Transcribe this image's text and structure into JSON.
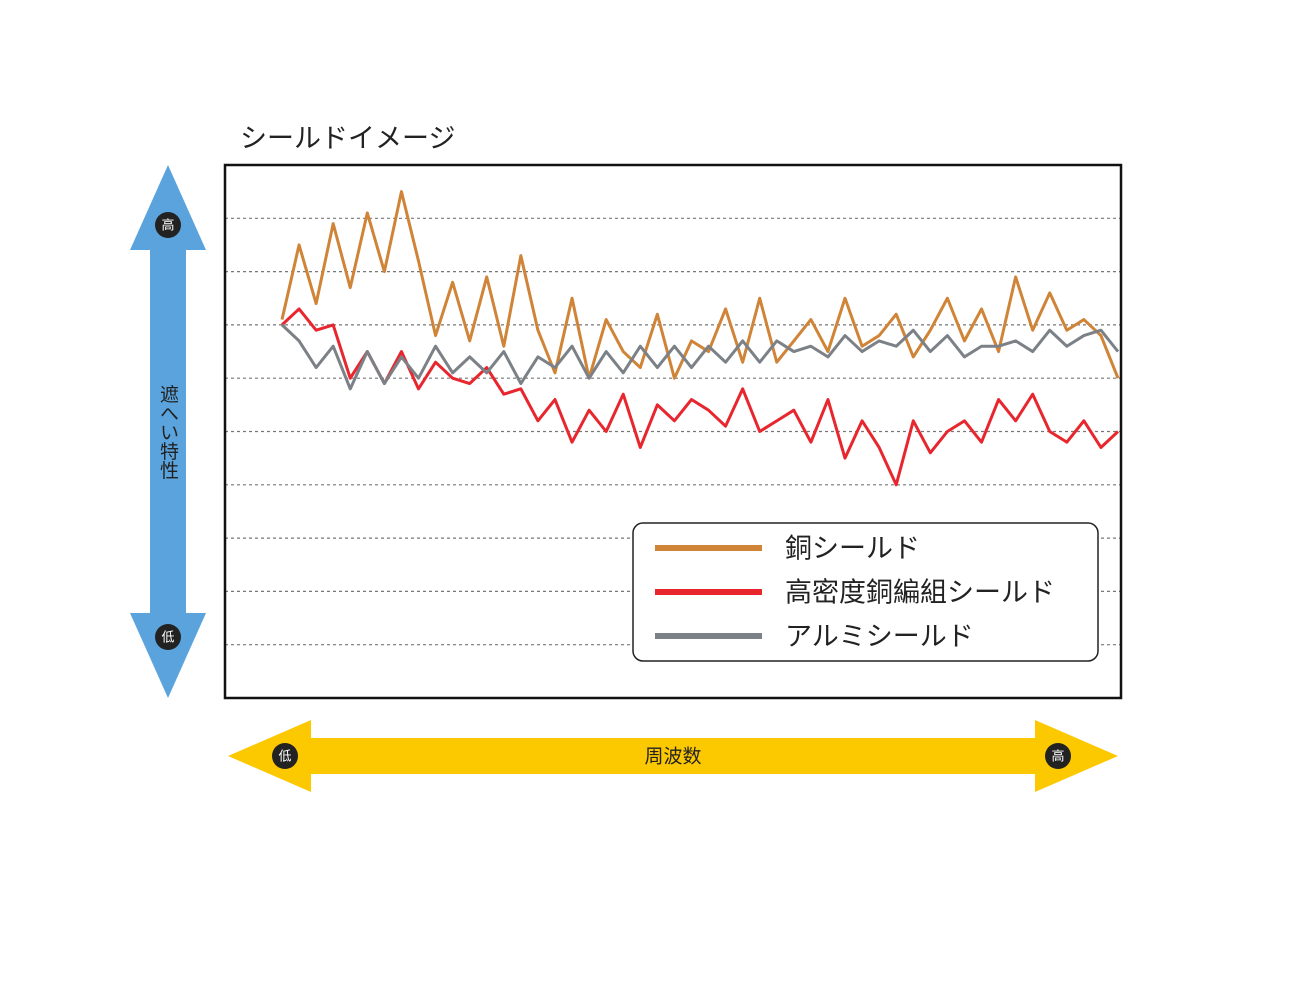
{
  "chart_data": {
    "type": "line",
    "title": "シールドイメージ",
    "y_label": "遮へい特性",
    "y_low_label": "低",
    "y_high_label": "高",
    "x_label": "周波数",
    "x_low_label": "低",
    "x_high_label": "高",
    "ylim": [
      0,
      10
    ],
    "yticks": [
      1,
      2,
      3,
      4,
      5,
      6,
      7,
      8,
      9
    ],
    "grid": true,
    "legend": "lower right",
    "series": [
      {
        "name": "銅シールド",
        "color": "#cf8437",
        "values": [
          7.1,
          8.5,
          7.4,
          8.9,
          7.7,
          9.1,
          8.0,
          9.5,
          8.2,
          6.8,
          7.8,
          6.7,
          7.9,
          6.6,
          8.3,
          6.9,
          6.1,
          7.5,
          6.0,
          7.1,
          6.5,
          6.2,
          7.2,
          6.0,
          6.7,
          6.5,
          7.3,
          6.3,
          7.5,
          6.3,
          6.7,
          7.1,
          6.5,
          7.5,
          6.6,
          6.8,
          7.2,
          6.4,
          6.9,
          7.5,
          6.7,
          7.3,
          6.5,
          7.9,
          6.9,
          7.6,
          6.9,
          7.1,
          6.8,
          6.0
        ]
      },
      {
        "name": "高密度銅編組シールド",
        "color": "#e8262e",
        "values": [
          7.0,
          7.3,
          6.9,
          7.0,
          6.0,
          6.5,
          5.9,
          6.5,
          5.8,
          6.3,
          6.0,
          5.9,
          6.2,
          5.7,
          5.8,
          5.2,
          5.6,
          4.8,
          5.4,
          5.0,
          5.7,
          4.7,
          5.5,
          5.2,
          5.6,
          5.4,
          5.1,
          5.8,
          5.0,
          5.2,
          5.4,
          4.8,
          5.6,
          4.5,
          5.2,
          4.7,
          4.0,
          5.2,
          4.6,
          5.0,
          5.2,
          4.8,
          5.6,
          5.2,
          5.7,
          5.0,
          4.8,
          5.2,
          4.7,
          5.0
        ]
      },
      {
        "name": "アルミシールド",
        "color": "#7b8187",
        "values": [
          7.0,
          6.7,
          6.2,
          6.6,
          5.8,
          6.5,
          5.9,
          6.4,
          6.0,
          6.6,
          6.1,
          6.4,
          6.1,
          6.5,
          5.9,
          6.4,
          6.2,
          6.6,
          6.0,
          6.5,
          6.1,
          6.6,
          6.2,
          6.6,
          6.2,
          6.6,
          6.3,
          6.7,
          6.3,
          6.7,
          6.5,
          6.6,
          6.4,
          6.8,
          6.5,
          6.7,
          6.6,
          6.9,
          6.5,
          6.8,
          6.4,
          6.6,
          6.6,
          6.7,
          6.5,
          6.9,
          6.6,
          6.8,
          6.9,
          6.5
        ]
      }
    ]
  }
}
